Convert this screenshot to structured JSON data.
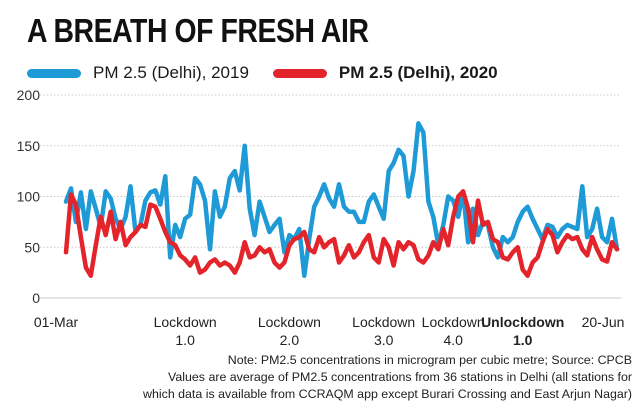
{
  "chart_data": {
    "type": "line",
    "title": "A BREATH OF FRESH AIR",
    "xlabel": "",
    "ylabel": "",
    "ylim": [
      0,
      200
    ],
    "yticks": [
      0,
      50,
      100,
      150,
      200
    ],
    "grid": true,
    "legend_placement": "top-left",
    "x_count": 112,
    "x_tick_labels": [
      {
        "idx": 0,
        "lines": [
          "01-Mar"
        ],
        "bold": false
      },
      {
        "idx": 24,
        "lines": [
          "Lockdown",
          "1.0"
        ],
        "bold": false
      },
      {
        "idx": 45,
        "lines": [
          "Lockdown",
          "2.0"
        ],
        "bold": false
      },
      {
        "idx": 64,
        "lines": [
          "Lockdown",
          "3.0"
        ],
        "bold": false
      },
      {
        "idx": 78,
        "lines": [
          "Lockdown",
          "4.0"
        ],
        "bold": false
      },
      {
        "idx": 92,
        "lines": [
          "Unlockdown",
          "1.0"
        ],
        "bold": true
      },
      {
        "idx": 111,
        "lines": [
          "20-Jun"
        ],
        "bold": false
      }
    ],
    "series": [
      {
        "name": "PM 2.5 (Delhi), 2019",
        "color": "#1e9bd7",
        "values": [
          95,
          108,
          75,
          104,
          68,
          105,
          88,
          70,
          105,
          98,
          78,
          68,
          80,
          110,
          65,
          72,
          96,
          104,
          106,
          92,
          120,
          40,
          72,
          60,
          78,
          82,
          118,
          112,
          96,
          48,
          105,
          80,
          90,
          118,
          125,
          106,
          150,
          88,
          62,
          95,
          80,
          65,
          72,
          78,
          45,
          62,
          58,
          68,
          22,
          58,
          90,
          100,
          112,
          98,
          90,
          112,
          90,
          85,
          85,
          75,
          75,
          95,
          102,
          90,
          78,
          125,
          133,
          146,
          140,
          100,
          125,
          172,
          163,
          95,
          80,
          52,
          72,
          100,
          96,
          80,
          105,
          55,
          88,
          62,
          75,
          72,
          50,
          40,
          60,
          55,
          60,
          75,
          85,
          90,
          78,
          68,
          58,
          72,
          70,
          60,
          68,
          72,
          70,
          68,
          110,
          60,
          68,
          88,
          60,
          55,
          78,
          48
        ],
        "points": [
          [
            0,
            95
          ],
          [
            1,
            108
          ],
          [
            2,
            75
          ],
          [
            3,
            104
          ],
          [
            4,
            68
          ],
          [
            5,
            105
          ],
          [
            6,
            88
          ],
          [
            7,
            70
          ],
          [
            8,
            105
          ],
          [
            9,
            98
          ],
          [
            10,
            78
          ],
          [
            11,
            68
          ],
          [
            12,
            80
          ],
          [
            13,
            110
          ],
          [
            14,
            65
          ],
          [
            15,
            72
          ],
          [
            16,
            96
          ],
          [
            17,
            104
          ],
          [
            18,
            106
          ],
          [
            19,
            92
          ],
          [
            20,
            120
          ],
          [
            21,
            40
          ],
          [
            22,
            72
          ],
          [
            23,
            60
          ],
          [
            24,
            78
          ],
          [
            25,
            82
          ],
          [
            26,
            118
          ],
          [
            27,
            112
          ],
          [
            28,
            96
          ],
          [
            29,
            48
          ],
          [
            30,
            105
          ],
          [
            31,
            80
          ],
          [
            32,
            90
          ],
          [
            33,
            118
          ],
          [
            34,
            125
          ],
          [
            35,
            106
          ],
          [
            36,
            150
          ],
          [
            37,
            88
          ],
          [
            38,
            62
          ],
          [
            39,
            95
          ],
          [
            40,
            80
          ],
          [
            41,
            65
          ],
          [
            42,
            72
          ],
          [
            43,
            78
          ],
          [
            44,
            45
          ],
          [
            45,
            62
          ],
          [
            46,
            58
          ],
          [
            47,
            68
          ],
          [
            48,
            22
          ],
          [
            49,
            58
          ],
          [
            50,
            90
          ],
          [
            51,
            100
          ],
          [
            52,
            112
          ],
          [
            53,
            98
          ],
          [
            54,
            90
          ],
          [
            55,
            112
          ],
          [
            56,
            90
          ],
          [
            57,
            85
          ],
          [
            58,
            85
          ],
          [
            59,
            75
          ],
          [
            60,
            75
          ],
          [
            61,
            95
          ],
          [
            62,
            102
          ],
          [
            63,
            90
          ],
          [
            64,
            78
          ],
          [
            65,
            125
          ],
          [
            66,
            133
          ],
          [
            67,
            146
          ],
          [
            68,
            140
          ],
          [
            69,
            100
          ],
          [
            70,
            125
          ],
          [
            71,
            172
          ],
          [
            72,
            163
          ],
          [
            73,
            95
          ],
          [
            74,
            80
          ],
          [
            75,
            52
          ],
          [
            76,
            72
          ],
          [
            77,
            100
          ],
          [
            78,
            96
          ],
          [
            79,
            80
          ],
          [
            80,
            105
          ],
          [
            81,
            55
          ],
          [
            82,
            88
          ],
          [
            83,
            62
          ],
          [
            84,
            75
          ],
          [
            85,
            72
          ],
          [
            86,
            50
          ],
          [
            87,
            40
          ],
          [
            88,
            60
          ],
          [
            89,
            55
          ],
          [
            90,
            60
          ],
          [
            91,
            75
          ],
          [
            92,
            85
          ],
          [
            93,
            90
          ],
          [
            94,
            78
          ],
          [
            95,
            68
          ],
          [
            96,
            58
          ],
          [
            97,
            72
          ],
          [
            98,
            70
          ],
          [
            99,
            60
          ],
          [
            100,
            68
          ],
          [
            101,
            72
          ],
          [
            102,
            70
          ],
          [
            103,
            68
          ],
          [
            104,
            110
          ],
          [
            105,
            60
          ],
          [
            106,
            68
          ],
          [
            107,
            88
          ],
          [
            108,
            60
          ],
          [
            109,
            55
          ],
          [
            110,
            78
          ],
          [
            111,
            48
          ]
        ]
      },
      {
        "name": "PM 2.5 (Delhi), 2020",
        "color": "#e3242b",
        "values": [
          45,
          102,
          92,
          60,
          30,
          22,
          52,
          80,
          62,
          85,
          58,
          75,
          52,
          60,
          65,
          72,
          70,
          92,
          90,
          78,
          65,
          55,
          52,
          42,
          38,
          32,
          40,
          25,
          28,
          35,
          38,
          32,
          35,
          32,
          25,
          35,
          55,
          40,
          42,
          50,
          45,
          48,
          35,
          30,
          35,
          52,
          58,
          60,
          65,
          48,
          45,
          60,
          50,
          55,
          58,
          35,
          42,
          52,
          40,
          45,
          55,
          62,
          40,
          35,
          58,
          50,
          32,
          55,
          48,
          55,
          52,
          38,
          35,
          42,
          55,
          48,
          68,
          52,
          80,
          100,
          105,
          88,
          55,
          96,
          72,
          75,
          58,
          55,
          40,
          38,
          45,
          50,
          28,
          22,
          35,
          40,
          55,
          68,
          62,
          45,
          55,
          62,
          58,
          60,
          48,
          42,
          60,
          48,
          38,
          36,
          55,
          48
        ],
        "points": [
          [
            0,
            45
          ],
          [
            1,
            102
          ],
          [
            2,
            92
          ],
          [
            3,
            60
          ],
          [
            4,
            30
          ],
          [
            5,
            22
          ],
          [
            6,
            52
          ],
          [
            7,
            80
          ],
          [
            8,
            62
          ],
          [
            9,
            85
          ],
          [
            10,
            58
          ],
          [
            11,
            75
          ],
          [
            12,
            52
          ],
          [
            13,
            60
          ],
          [
            14,
            65
          ],
          [
            15,
            72
          ],
          [
            16,
            70
          ],
          [
            17,
            92
          ],
          [
            18,
            90
          ],
          [
            19,
            78
          ],
          [
            20,
            65
          ],
          [
            21,
            55
          ],
          [
            22,
            52
          ],
          [
            23,
            42
          ],
          [
            24,
            38
          ],
          [
            25,
            32
          ],
          [
            26,
            40
          ],
          [
            27,
            25
          ],
          [
            28,
            28
          ],
          [
            29,
            35
          ],
          [
            30,
            38
          ],
          [
            31,
            32
          ],
          [
            32,
            35
          ],
          [
            33,
            32
          ],
          [
            34,
            25
          ],
          [
            35,
            35
          ],
          [
            36,
            55
          ],
          [
            37,
            40
          ],
          [
            38,
            42
          ],
          [
            39,
            50
          ],
          [
            40,
            45
          ],
          [
            41,
            48
          ],
          [
            42,
            35
          ],
          [
            43,
            30
          ],
          [
            44,
            35
          ],
          [
            45,
            52
          ],
          [
            46,
            58
          ],
          [
            47,
            60
          ],
          [
            48,
            65
          ],
          [
            49,
            48
          ],
          [
            50,
            45
          ],
          [
            51,
            60
          ],
          [
            52,
            50
          ],
          [
            53,
            55
          ],
          [
            54,
            58
          ],
          [
            55,
            35
          ],
          [
            56,
            42
          ],
          [
            57,
            52
          ],
          [
            58,
            40
          ],
          [
            59,
            45
          ],
          [
            60,
            55
          ],
          [
            61,
            62
          ],
          [
            62,
            40
          ],
          [
            63,
            35
          ],
          [
            64,
            58
          ],
          [
            65,
            50
          ],
          [
            66,
            32
          ],
          [
            67,
            55
          ],
          [
            68,
            48
          ],
          [
            69,
            55
          ],
          [
            70,
            52
          ],
          [
            71,
            38
          ],
          [
            72,
            35
          ],
          [
            73,
            42
          ],
          [
            74,
            55
          ],
          [
            75,
            48
          ],
          [
            76,
            68
          ],
          [
            77,
            52
          ],
          [
            78,
            80
          ],
          [
            79,
            100
          ],
          [
            80,
            105
          ],
          [
            81,
            88
          ],
          [
            82,
            55
          ],
          [
            83,
            96
          ],
          [
            84,
            72
          ],
          [
            85,
            75
          ],
          [
            86,
            58
          ],
          [
            87,
            55
          ],
          [
            88,
            40
          ],
          [
            89,
            38
          ],
          [
            90,
            45
          ],
          [
            91,
            50
          ],
          [
            92,
            28
          ],
          [
            93,
            22
          ],
          [
            94,
            35
          ],
          [
            95,
            40
          ],
          [
            96,
            55
          ],
          [
            97,
            68
          ],
          [
            98,
            62
          ],
          [
            99,
            45
          ],
          [
            100,
            55
          ],
          [
            101,
            62
          ],
          [
            102,
            58
          ],
          [
            103,
            60
          ],
          [
            104,
            48
          ],
          [
            105,
            42
          ],
          [
            106,
            60
          ],
          [
            107,
            48
          ],
          [
            108,
            38
          ],
          [
            109,
            36
          ],
          [
            110,
            55
          ],
          [
            111,
            48
          ]
        ]
      }
    ]
  },
  "legend": [
    {
      "label": "PM 2.5 (Delhi), 2019",
      "color": "#1e9bd7"
    },
    {
      "label": "PM 2.5 (Delhi), 2020",
      "color": "#e3242b"
    }
  ],
  "note": {
    "line1": "Note: PM2.5 concentrations in microgram per cubic metre; Source: CPCB",
    "line2": "Values are average of PM2.5 concentrations from 36 stations in Delhi (all stations for",
    "line3": "which data is available from CCRAQM app except Burari Crossing and East Arjun Nagar)"
  }
}
